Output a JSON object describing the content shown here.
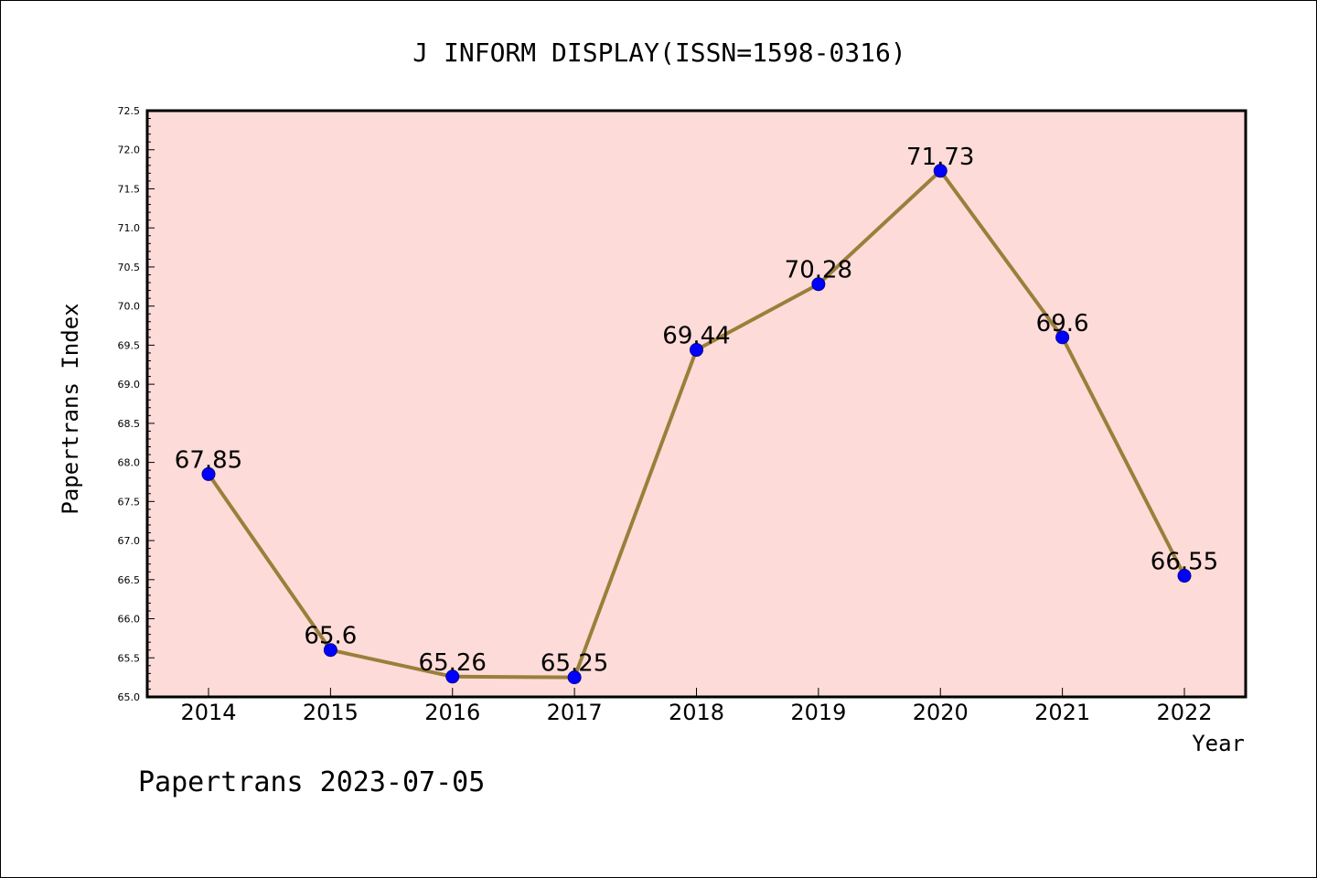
{
  "chart_data": {
    "type": "line",
    "title": "J INFORM DISPLAY(ISSN=1598-0316)",
    "xlabel": "Year",
    "ylabel": "Papertrans Index",
    "categories": [
      "2014",
      "2015",
      "2016",
      "2017",
      "2018",
      "2019",
      "2020",
      "2021",
      "2022"
    ],
    "values": [
      67.85,
      65.6,
      65.26,
      65.25,
      69.44,
      70.28,
      71.73,
      69.6,
      66.55
    ],
    "data_labels": [
      "67.85",
      "65.6",
      "65.26",
      "65.25",
      "69.44",
      "70.28",
      "71.73",
      "69.6",
      "66.55"
    ],
    "ylim": [
      65.0,
      72.5
    ],
    "yticks": [
      "65.0",
      "65.5",
      "66.0",
      "66.5",
      "67.0",
      "67.5",
      "68.0",
      "68.5",
      "69.0",
      "69.5",
      "70.0",
      "70.5",
      "71.0",
      "71.5",
      "72.0",
      "72.5"
    ],
    "grid": false,
    "legend": "none",
    "footer": "Papertrans 2023-07-05",
    "colors": {
      "plot_background": "#fddbd8",
      "line": "#9a7f3b",
      "marker": "#0000ff",
      "marker_edge": "#00008b",
      "axes": "#000000"
    }
  }
}
